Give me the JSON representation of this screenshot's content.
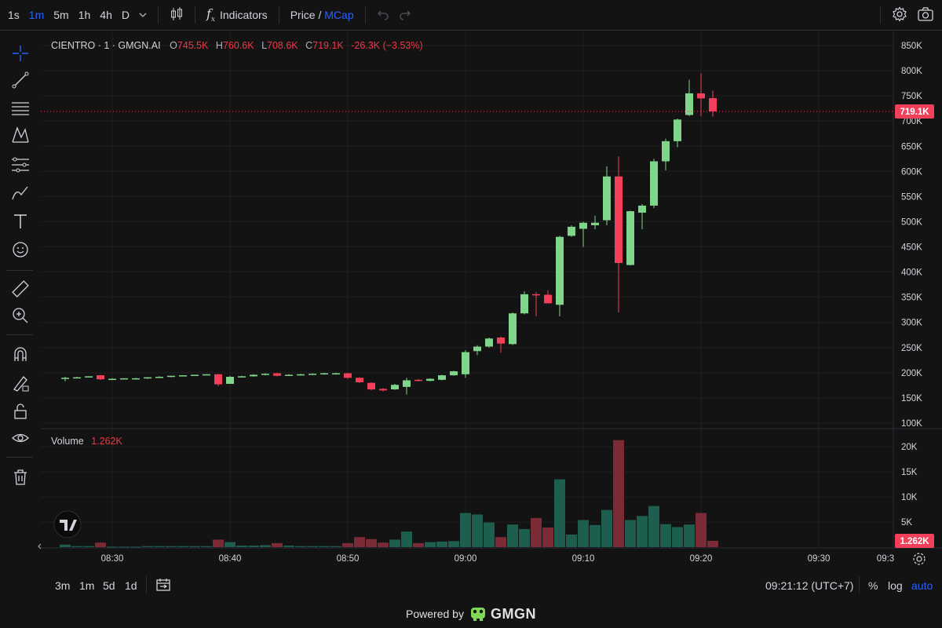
{
  "toolbar": {
    "intervals": [
      "1s",
      "1m",
      "5m",
      "1h",
      "4h",
      "D"
    ],
    "active_interval": "1m",
    "indicators_label": "Indicators",
    "price_label": "Price",
    "slash": "/",
    "mcap_label": "MCap"
  },
  "sidebar": {
    "icons": [
      "crosshair-icon",
      "trendline-icon",
      "fib-retracement-icon",
      "pattern-icon",
      "forecast-icon",
      "brush-icon",
      "text-icon",
      "emoji-icon",
      "ruler-icon",
      "zoom-in-icon",
      "magnet-icon",
      "lock-drawing-icon",
      "lock-icon",
      "eye-icon",
      "trash-icon"
    ]
  },
  "legend": {
    "symbol": "CIENTRO · 1 · GMGN.AI",
    "o_label": "O",
    "o_value": "745.5K",
    "h_label": "H",
    "h_value": "760.6K",
    "l_label": "L",
    "l_value": "708.6K",
    "c_label": "C",
    "c_value": "719.1K",
    "change": "-26.3K (−3.53%)"
  },
  "volume_legend": {
    "label": "Volume",
    "value": "1.262K"
  },
  "bottombar": {
    "ranges": [
      "3m",
      "1m",
      "5d",
      "1d"
    ],
    "time": "09:21:12 (UTC+7)",
    "percent_label": "%",
    "log_label": "log",
    "auto_label": "auto"
  },
  "footer": {
    "powered_by": "Powered by",
    "brand": "GMGN"
  },
  "colors": {
    "up": "#7fd68a",
    "down": "#f23f5a",
    "vol_up": "#1e5e4e",
    "vol_down": "#7a2b35",
    "accent": "#2962ff",
    "bg": "#131313"
  },
  "chart_data": {
    "type": "candlestick",
    "x_ticks": [
      "08:30",
      "08:40",
      "08:50",
      "09:00",
      "09:10",
      "09:20",
      "09:30",
      "09:3"
    ],
    "y_ticks": [
      "100K",
      "150K",
      "200K",
      "250K",
      "300K",
      "350K",
      "400K",
      "450K",
      "500K",
      "550K",
      "600K",
      "650K",
      "700K",
      "750K",
      "800K",
      "850K"
    ],
    "vol_ticks": [
      "5K",
      "10K",
      "15K",
      "20K"
    ],
    "ylim": [
      100,
      850
    ],
    "y_unit": "K",
    "last_price_label": "719.1K",
    "last_price": 719.1,
    "last_volume_label": "1.262K",
    "candles": [
      {
        "t": "08:26",
        "o": 188,
        "h": 192,
        "l": 183,
        "c": 190,
        "v": 0.5
      },
      {
        "t": "08:27",
        "o": 190,
        "h": 192,
        "l": 189,
        "c": 191,
        "v": 0.2
      },
      {
        "t": "08:28",
        "o": 192,
        "h": 193,
        "l": 191,
        "c": 193,
        "v": 0.2
      },
      {
        "t": "08:29",
        "o": 195,
        "h": 196,
        "l": 186,
        "c": 187,
        "v": 0.9
      },
      {
        "t": "08:30",
        "o": 188,
        "h": 189,
        "l": 187,
        "c": 188,
        "v": 0.1
      },
      {
        "t": "08:31",
        "o": 188,
        "h": 189,
        "l": 187,
        "c": 189,
        "v": 0.1
      },
      {
        "t": "08:32",
        "o": 189,
        "h": 190,
        "l": 188,
        "c": 189,
        "v": 0.1
      },
      {
        "t": "08:33",
        "o": 189,
        "h": 191,
        "l": 188,
        "c": 191,
        "v": 0.2
      },
      {
        "t": "08:34",
        "o": 191,
        "h": 193,
        "l": 190,
        "c": 192,
        "v": 0.2
      },
      {
        "t": "08:35",
        "o": 192,
        "h": 194,
        "l": 191,
        "c": 194,
        "v": 0.2
      },
      {
        "t": "08:36",
        "o": 194,
        "h": 195,
        "l": 193,
        "c": 195,
        "v": 0.2
      },
      {
        "t": "08:37",
        "o": 195,
        "h": 196,
        "l": 194,
        "c": 196,
        "v": 0.2
      },
      {
        "t": "08:38",
        "o": 196,
        "h": 197,
        "l": 195,
        "c": 197,
        "v": 0.2
      },
      {
        "t": "08:39",
        "o": 197,
        "h": 198,
        "l": 173,
        "c": 177,
        "v": 1.5
      },
      {
        "t": "08:40",
        "o": 178,
        "h": 194,
        "l": 178,
        "c": 192,
        "v": 1.0
      },
      {
        "t": "08:41",
        "o": 192,
        "h": 194,
        "l": 191,
        "c": 193,
        "v": 0.3
      },
      {
        "t": "08:42",
        "o": 193,
        "h": 197,
        "l": 192,
        "c": 196,
        "v": 0.3
      },
      {
        "t": "08:43",
        "o": 196,
        "h": 199,
        "l": 195,
        "c": 198,
        "v": 0.4
      },
      {
        "t": "08:44",
        "o": 199,
        "h": 200,
        "l": 193,
        "c": 194,
        "v": 0.8
      },
      {
        "t": "08:45",
        "o": 194,
        "h": 197,
        "l": 194,
        "c": 196,
        "v": 0.3
      },
      {
        "t": "08:46",
        "o": 196,
        "h": 198,
        "l": 195,
        "c": 197,
        "v": 0.2
      },
      {
        "t": "08:47",
        "o": 197,
        "h": 199,
        "l": 196,
        "c": 198,
        "v": 0.2
      },
      {
        "t": "08:48",
        "o": 198,
        "h": 200,
        "l": 197,
        "c": 199,
        "v": 0.2
      },
      {
        "t": "08:49",
        "o": 199,
        "h": 200,
        "l": 198,
        "c": 199,
        "v": 0.2
      },
      {
        "t": "08:50",
        "o": 199,
        "h": 200,
        "l": 188,
        "c": 190,
        "v": 0.8
      },
      {
        "t": "08:51",
        "o": 190,
        "h": 191,
        "l": 180,
        "c": 181,
        "v": 2.0
      },
      {
        "t": "08:52",
        "o": 180,
        "h": 181,
        "l": 165,
        "c": 167,
        "v": 1.6
      },
      {
        "t": "08:53",
        "o": 168,
        "h": 170,
        "l": 163,
        "c": 165,
        "v": 0.9
      },
      {
        "t": "08:54",
        "o": 167,
        "h": 178,
        "l": 166,
        "c": 176,
        "v": 1.5
      },
      {
        "t": "08:55",
        "o": 172,
        "h": 190,
        "l": 157,
        "c": 185,
        "v": 3.1
      },
      {
        "t": "08:56",
        "o": 186,
        "h": 188,
        "l": 183,
        "c": 184,
        "v": 0.8
      },
      {
        "t": "08:57",
        "o": 184,
        "h": 189,
        "l": 183,
        "c": 188,
        "v": 1.0
      },
      {
        "t": "08:58",
        "o": 186,
        "h": 196,
        "l": 185,
        "c": 195,
        "v": 1.1
      },
      {
        "t": "08:59",
        "o": 195,
        "h": 204,
        "l": 194,
        "c": 203,
        "v": 1.2
      },
      {
        "t": "09:00",
        "o": 197,
        "h": 245,
        "l": 190,
        "c": 241,
        "v": 6.8
      },
      {
        "t": "09:01",
        "o": 243,
        "h": 255,
        "l": 235,
        "c": 252,
        "v": 6.5
      },
      {
        "t": "09:02",
        "o": 252,
        "h": 270,
        "l": 250,
        "c": 268,
        "v": 4.9
      },
      {
        "t": "09:03",
        "o": 270,
        "h": 272,
        "l": 240,
        "c": 258,
        "v": 2.0
      },
      {
        "t": "09:04",
        "o": 257,
        "h": 320,
        "l": 255,
        "c": 318,
        "v": 4.5
      },
      {
        "t": "09:05",
        "o": 318,
        "h": 362,
        "l": 316,
        "c": 356,
        "v": 3.6
      },
      {
        "t": "09:06",
        "o": 356,
        "h": 360,
        "l": 312,
        "c": 354,
        "v": 5.8
      },
      {
        "t": "09:07",
        "o": 355,
        "h": 364,
        "l": 338,
        "c": 338,
        "v": 3.9
      },
      {
        "t": "09:08",
        "o": 335,
        "h": 472,
        "l": 312,
        "c": 470,
        "v": 13.5
      },
      {
        "t": "09:09",
        "o": 472,
        "h": 493,
        "l": 470,
        "c": 490,
        "v": 2.5
      },
      {
        "t": "09:10",
        "o": 486,
        "h": 500,
        "l": 450,
        "c": 498,
        "v": 5.4
      },
      {
        "t": "09:11",
        "o": 493,
        "h": 512,
        "l": 485,
        "c": 498,
        "v": 4.4
      },
      {
        "t": "09:12",
        "o": 503,
        "h": 610,
        "l": 493,
        "c": 590,
        "v": 7.4
      },
      {
        "t": "09:13",
        "o": 590,
        "h": 630,
        "l": 320,
        "c": 418,
        "v": 21.3
      },
      {
        "t": "09:14",
        "o": 414,
        "h": 522,
        "l": 413,
        "c": 521,
        "v": 5.4
      },
      {
        "t": "09:15",
        "o": 518,
        "h": 535,
        "l": 485,
        "c": 532,
        "v": 6.2
      },
      {
        "t": "09:16",
        "o": 532,
        "h": 625,
        "l": 527,
        "c": 620,
        "v": 8.2
      },
      {
        "t": "09:17",
        "o": 620,
        "h": 665,
        "l": 602,
        "c": 660,
        "v": 4.6
      },
      {
        "t": "09:18",
        "o": 660,
        "h": 705,
        "l": 648,
        "c": 703,
        "v": 4.0
      },
      {
        "t": "09:19",
        "o": 712,
        "h": 782,
        "l": 710,
        "c": 755,
        "v": 4.5
      },
      {
        "t": "09:20",
        "o": 755,
        "h": 795,
        "l": 710,
        "c": 745,
        "v": 6.8
      },
      {
        "t": "09:21",
        "o": 745.5,
        "h": 760.6,
        "l": 708.6,
        "c": 719.1,
        "v": 1.262
      }
    ]
  }
}
